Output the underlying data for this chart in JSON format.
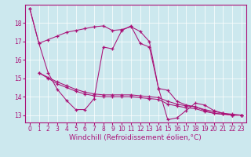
{
  "background_color": "#cce8ee",
  "line_color": "#aa1177",
  "grid_color": "#ffffff",
  "xlabel": "Windchill (Refroidissement éolien,°C)",
  "xlabel_fontsize": 6.5,
  "tick_fontsize": 5.5,
  "xlim": [
    -0.5,
    23.5
  ],
  "ylim": [
    12.6,
    19.0
  ],
  "yticks": [
    13,
    14,
    15,
    16,
    17,
    18
  ],
  "xticks": [
    0,
    1,
    2,
    3,
    4,
    5,
    6,
    7,
    8,
    9,
    10,
    11,
    12,
    13,
    14,
    15,
    16,
    17,
    18,
    19,
    20,
    21,
    22,
    23
  ],
  "s1_x": [
    0,
    1,
    2,
    3,
    4,
    5,
    6,
    7,
    8,
    9,
    10,
    11,
    12,
    13,
    14,
    15,
    16,
    17,
    18,
    19,
    20,
    21,
    22,
    23
  ],
  "s1_y": [
    18.8,
    16.9,
    17.1,
    17.3,
    17.5,
    17.6,
    17.7,
    17.8,
    17.85,
    17.6,
    17.65,
    17.8,
    17.55,
    17.0,
    14.45,
    14.35,
    13.75,
    13.55,
    13.45,
    13.25,
    13.1,
    13.05,
    13.0,
    13.0
  ],
  "s2_x": [
    0,
    1,
    2,
    3,
    4,
    5,
    6,
    7,
    8,
    9,
    10,
    11,
    12,
    13,
    14,
    15,
    16,
    17,
    18,
    19,
    20,
    21,
    22,
    23
  ],
  "s2_y": [
    18.8,
    16.9,
    15.3,
    14.4,
    13.8,
    13.3,
    13.3,
    13.9,
    16.7,
    16.6,
    17.6,
    17.85,
    16.9,
    16.7,
    14.45,
    12.75,
    12.85,
    13.25,
    13.65,
    13.55,
    13.25,
    13.1,
    13.0,
    13.0
  ],
  "s3_x": [
    1,
    2,
    3,
    4,
    5,
    6,
    7,
    8,
    9,
    10,
    11,
    12,
    13,
    14,
    15,
    16,
    17,
    18,
    19,
    20,
    21,
    22,
    23
  ],
  "s3_y": [
    15.3,
    15.0,
    14.7,
    14.5,
    14.3,
    14.15,
    14.05,
    14.0,
    14.0,
    14.0,
    14.0,
    13.95,
    13.9,
    13.85,
    13.6,
    13.5,
    13.4,
    13.35,
    13.2,
    13.1,
    13.05,
    13.0,
    13.0
  ],
  "s4_x": [
    1,
    2,
    3,
    4,
    5,
    6,
    7,
    8,
    9,
    10,
    11,
    12,
    13,
    14,
    15,
    16,
    17,
    18,
    19,
    20,
    21,
    22,
    23
  ],
  "s4_y": [
    15.3,
    15.05,
    14.8,
    14.6,
    14.4,
    14.25,
    14.15,
    14.1,
    14.1,
    14.1,
    14.1,
    14.05,
    14.0,
    13.95,
    13.75,
    13.6,
    13.5,
    13.45,
    13.3,
    13.2,
    13.1,
    13.05,
    13.0
  ]
}
